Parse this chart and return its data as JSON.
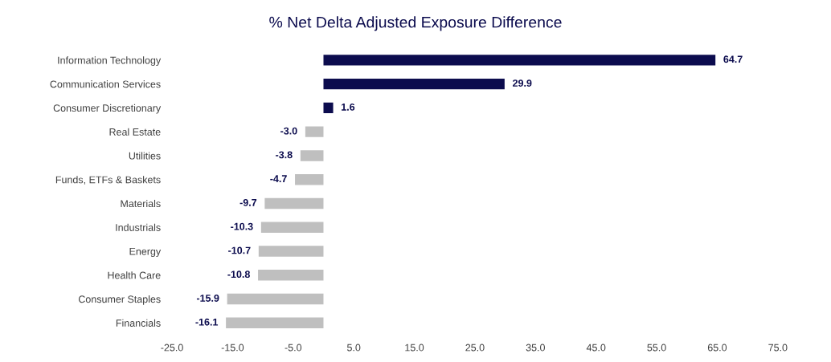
{
  "chart_data": {
    "type": "bar",
    "orientation": "horizontal",
    "title": "% Net Delta Adjusted Exposure Difference",
    "categories": [
      "Information Technology",
      "Communication Services",
      "Consumer Discretionary",
      "Real Estate",
      "Utilities",
      "Funds, ETFs & Baskets",
      "Materials",
      "Industrials",
      "Energy",
      "Health Care",
      "Consumer Staples",
      "Financials"
    ],
    "values": [
      64.7,
      29.9,
      1.6,
      -3.0,
      -3.8,
      -4.7,
      -9.7,
      -10.3,
      -10.7,
      -10.8,
      -15.9,
      -16.1
    ],
    "value_labels": [
      "64.7",
      "29.9",
      "1.6",
      "-3.0",
      "-3.8",
      "-4.7",
      "-9.7",
      "-10.3",
      "-10.7",
      "-10.8",
      "-15.9",
      "-16.1"
    ],
    "colors": [
      "#0c0c4e",
      "#0c0c4e",
      "#0c0c4e",
      "#bfbfbf",
      "#bfbfbf",
      "#bfbfbf",
      "#bfbfbf",
      "#bfbfbf",
      "#bfbfbf",
      "#bfbfbf",
      "#bfbfbf",
      "#bfbfbf"
    ],
    "xlim": [
      -25,
      75
    ],
    "xticks": [
      {
        "value": -25,
        "label": "-25.0"
      },
      {
        "value": -15,
        "label": "-15.0"
      },
      {
        "value": -5,
        "label": "-5.0"
      },
      {
        "value": 5,
        "label": "5.0"
      },
      {
        "value": 15,
        "label": "15.0"
      },
      {
        "value": 25,
        "label": "25.0"
      },
      {
        "value": 35,
        "label": "35.0"
      },
      {
        "value": 45,
        "label": "45.0"
      },
      {
        "value": 55,
        "label": "55.0"
      },
      {
        "value": 65,
        "label": "65.0"
      },
      {
        "value": 75,
        "label": "75.0"
      }
    ],
    "grid": false,
    "legend": false
  }
}
